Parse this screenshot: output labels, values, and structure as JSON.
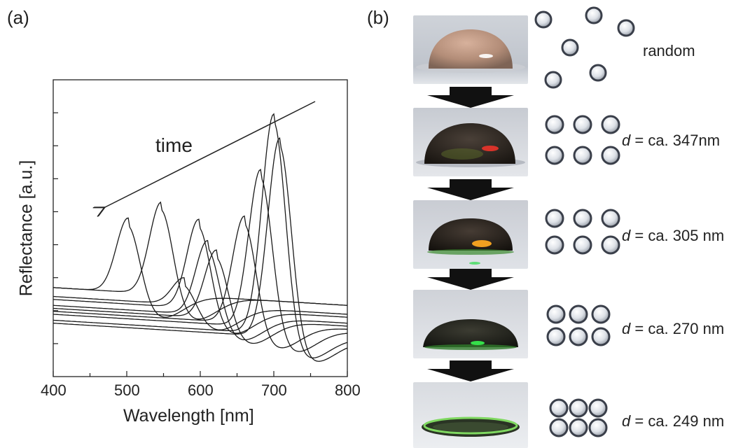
{
  "panel_a_label": "(a)",
  "panel_b_label": "(b)",
  "chart_data": {
    "type": "line",
    "xlabel": "Wavelength [nm]",
    "ylabel": "Reflectance [a.u.]",
    "xlim": [
      400,
      800
    ],
    "x_ticks": [
      "400",
      "500",
      "600",
      "700",
      "800"
    ],
    "y_tick_labels_shown": false,
    "annotation": "time",
    "series": [
      {
        "peak_nm": 502,
        "peak_level": 0.55,
        "baseline": 0.3
      },
      {
        "peak_nm": 547,
        "peak_level": 0.61,
        "baseline": 0.3
      },
      {
        "peak_nm": 578,
        "peak_level": 0.36,
        "baseline": 0.27
      },
      {
        "peak_nm": 598,
        "peak_level": 0.56,
        "baseline": 0.26
      },
      {
        "peak_nm": 610,
        "peak_level": 0.49,
        "baseline": 0.24
      },
      {
        "peak_nm": 622,
        "peak_level": 0.46,
        "baseline": 0.23
      },
      {
        "peak_nm": 660,
        "peak_level": 0.58,
        "baseline": 0.22
      },
      {
        "peak_nm": 682,
        "peak_level": 0.74,
        "baseline": 0.21
      },
      {
        "peak_nm": 700,
        "peak_level": 0.93,
        "baseline": 0.19
      },
      {
        "peak_nm": 708,
        "peak_level": 0.85,
        "baseline": 0.18
      }
    ]
  },
  "rows": [
    {
      "label_text": "random",
      "particle_arrangement": "random",
      "photo_state": "opaque beige droplet"
    },
    {
      "label_prefix": "d",
      "label_text": " = ca. 347nm",
      "particle_arrangement": "loose square lattice",
      "photo_state": "dark droplet with red reflection"
    },
    {
      "label_prefix": "d",
      "label_text": " = ca. 305 nm",
      "particle_arrangement": "square lattice",
      "photo_state": "dark droplet with orange-green reflection"
    },
    {
      "label_prefix": "d",
      "label_text": " = ca. 270 nm",
      "particle_arrangement": "close square lattice",
      "photo_state": "flatter droplet with green reflection"
    },
    {
      "label_prefix": "d",
      "label_text": " = ca. 249 nm",
      "particle_arrangement": "close-packed lattice",
      "photo_state": "dried ring with green reflection"
    }
  ],
  "colors": {
    "particle_fill": "#e6e9ee",
    "particle_rim": "#3a3f4a",
    "arrow": "#111111"
  }
}
